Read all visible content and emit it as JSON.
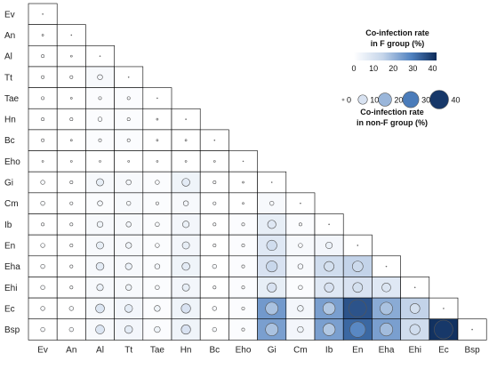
{
  "chart_data": {
    "type": "heatmap",
    "subtype": "lower-triangle co-occurrence matrix with bubble overlay",
    "labels": [
      "Ev",
      "An",
      "Al",
      "Tt",
      "Tae",
      "Hn",
      "Bc",
      "Eho",
      "Gi",
      "Cm",
      "Ib",
      "En",
      "Eha",
      "Ehi",
      "Ec",
      "Bsp"
    ],
    "fill_values_F_group": [
      [],
      [
        0
      ],
      [
        0,
        0
      ],
      [
        0,
        0,
        2
      ],
      [
        0,
        0,
        1,
        1
      ],
      [
        0,
        0,
        1,
        1,
        0
      ],
      [
        0,
        0,
        1,
        1,
        0,
        0
      ],
      [
        0,
        0,
        0,
        0,
        0,
        0,
        0
      ],
      [
        0,
        0,
        2,
        2,
        1,
        4,
        0,
        0
      ],
      [
        0,
        0,
        1,
        2,
        1,
        2,
        0,
        0,
        2
      ],
      [
        0,
        0,
        2,
        2,
        1,
        3,
        0,
        1,
        6,
        1
      ],
      [
        0,
        0,
        2,
        2,
        1,
        3,
        0,
        1,
        8,
        2,
        3
      ],
      [
        0,
        0,
        2,
        2,
        1,
        4,
        0,
        1,
        10,
        2,
        12,
        15
      ],
      [
        0,
        0,
        2,
        2,
        1,
        3,
        0,
        1,
        6,
        1,
        8,
        10,
        8
      ],
      [
        0,
        0,
        2,
        3,
        1,
        4,
        0,
        1,
        25,
        3,
        24,
        36,
        22,
        15
      ],
      [
        0,
        0,
        2,
        3,
        1,
        4,
        0,
        1,
        24,
        3,
        24,
        33,
        24,
        12,
        41
      ]
    ],
    "bubble_values_nonF_group": [
      [],
      [
        0
      ],
      [
        1,
        0
      ],
      [
        1,
        1,
        3
      ],
      [
        1,
        0,
        1,
        1
      ],
      [
        1,
        1,
        2,
        1,
        0
      ],
      [
        1,
        0,
        1,
        1,
        0,
        0
      ],
      [
        0,
        0,
        0,
        0,
        0,
        0,
        0
      ],
      [
        2,
        1,
        6,
        3,
        2,
        7,
        1,
        0
      ],
      [
        2,
        1,
        3,
        2,
        1,
        3,
        1,
        0,
        2
      ],
      [
        1,
        1,
        4,
        3,
        2,
        5,
        1,
        1,
        8,
        1
      ],
      [
        2,
        1,
        6,
        4,
        2,
        6,
        1,
        1,
        12,
        2,
        5
      ],
      [
        2,
        1,
        7,
        5,
        3,
        7,
        2,
        1,
        14,
        3,
        11,
        13
      ],
      [
        2,
        1,
        5,
        4,
        2,
        6,
        1,
        1,
        10,
        2,
        10,
        11,
        9
      ],
      [
        2,
        2,
        9,
        7,
        4,
        10,
        2,
        1,
        18,
        4,
        17,
        36,
        18,
        11
      ],
      [
        2,
        2,
        9,
        7,
        4,
        10,
        2,
        1,
        18,
        4,
        17,
        28,
        19,
        12,
        40
      ]
    ],
    "color_legend": {
      "title": [
        "Co-infection rate",
        "in F group (%)"
      ],
      "ticks": [
        0,
        10,
        20,
        30,
        40
      ],
      "range": [
        0,
        42
      ],
      "color_low": "#ffffff",
      "color_high": "#0d2b59"
    },
    "size_legend": {
      "title": [
        "Co-infection rate",
        "in non-F group (%)"
      ],
      "values": [
        0,
        10,
        20,
        30,
        40
      ]
    },
    "colors": {
      "bubble_stroke": "#555555",
      "cell_border": "#000000"
    }
  }
}
